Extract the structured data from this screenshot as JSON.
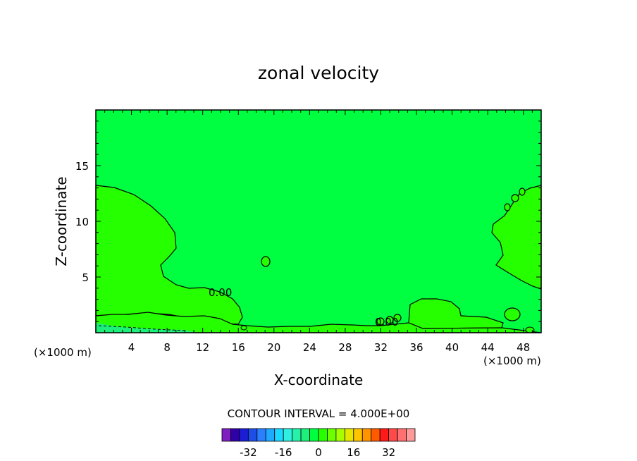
{
  "chart_data": {
    "type": "contour",
    "title": "zonal velocity",
    "xlabel": "X-coordinate",
    "ylabel": "Z-coordinate",
    "x_unit_left": "(×1000 m)",
    "x_unit_right": "(×1000 m)",
    "xlim": [
      0,
      50
    ],
    "ylim": [
      0,
      20
    ],
    "x_ticks": [
      4,
      8,
      12,
      16,
      20,
      24,
      28,
      32,
      36,
      40,
      44,
      48
    ],
    "y_ticks": [
      5,
      10,
      15
    ],
    "contour_labels": [
      "0.00",
      "0.00"
    ],
    "contour_interval_text": "CONTOUR INTERVAL = 4.000E+00",
    "colorbar": {
      "colors": [
        "#7f1fbf",
        "#2f00a8",
        "#1c1cd4",
        "#1d4fe8",
        "#2b7fff",
        "#1faaff",
        "#1ad8ff",
        "#2ff0e0",
        "#27f0a8",
        "#1cf07a",
        "#00ff40",
        "#26ff00",
        "#6cff00",
        "#a8ff00",
        "#e6e600",
        "#ffc400",
        "#ff9400",
        "#ff5a00",
        "#ff1a1a",
        "#ff4a4a",
        "#ff7070",
        "#ff9a9a"
      ],
      "tick_labels": [
        "-32",
        "-16",
        "0",
        "16",
        "32"
      ],
      "tick_values": [
        -32,
        -16,
        0,
        16,
        32
      ]
    },
    "field_colors": {
      "background": "#00ff40",
      "positive_region": "#26ff00",
      "negative_region": "#1cf07a"
    }
  }
}
